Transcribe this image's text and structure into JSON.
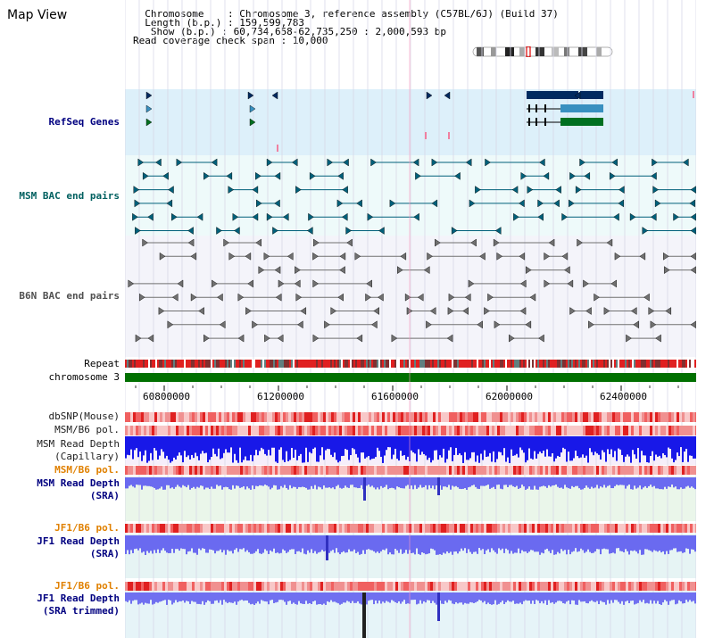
{
  "header": {
    "view_title": "Map View",
    "info_lines": [
      "  Chromosome    : Chromosome 3, reference assembly (C57BL/6J) (Build 37)",
      "  Length (b.p.) : 159,599,783",
      "   Show (b.p.) : 60,734,658-62,735,250 : 2,000,593 bp",
      "Read coverage check span : 10,000"
    ]
  },
  "tracks": {
    "refseq_genes": "RefSeq Genes",
    "msm_bac": "MSM BAC end pairs",
    "b6n_bac": "B6N BAC end pairs",
    "repeat": "Repeat",
    "chromosome": "chromosome 3",
    "dbsnp": "dbSNP(Mouse)",
    "msm_b6_pol_1": "MSM/B6 pol.",
    "msm_read_depth_cap": "MSM Read Depth\n(Capillary)",
    "msm_b6_pol_2": "MSM/B6 pol.",
    "msm_read_depth_sra": "MSM Read Depth\n(SRA)",
    "jf1_b6_pol_1": "JF1/B6 pol.",
    "jf1_read_depth_sra": "JF1 Read Depth\n(SRA)",
    "jf1_b6_pol_2": "JF1/B6 pol.",
    "jf1_read_depth_trim": "JF1 Read Depth\n(SRA trimmed)"
  },
  "axis": {
    "ticks": [
      "60800000",
      "61200000",
      "61600000",
      "62000000",
      "62400000"
    ]
  },
  "colors": {
    "refseq_bg": "#ddf0fa",
    "bac_bg": "#eefafa",
    "gene_navy": "#002a60",
    "gene_blue": "#3890c0",
    "gene_green": "#007020",
    "msm_teal": "#00607a",
    "b6n_grey": "#707070",
    "depth_blue": "#1010ee",
    "chrom_green": "#007000"
  }
}
